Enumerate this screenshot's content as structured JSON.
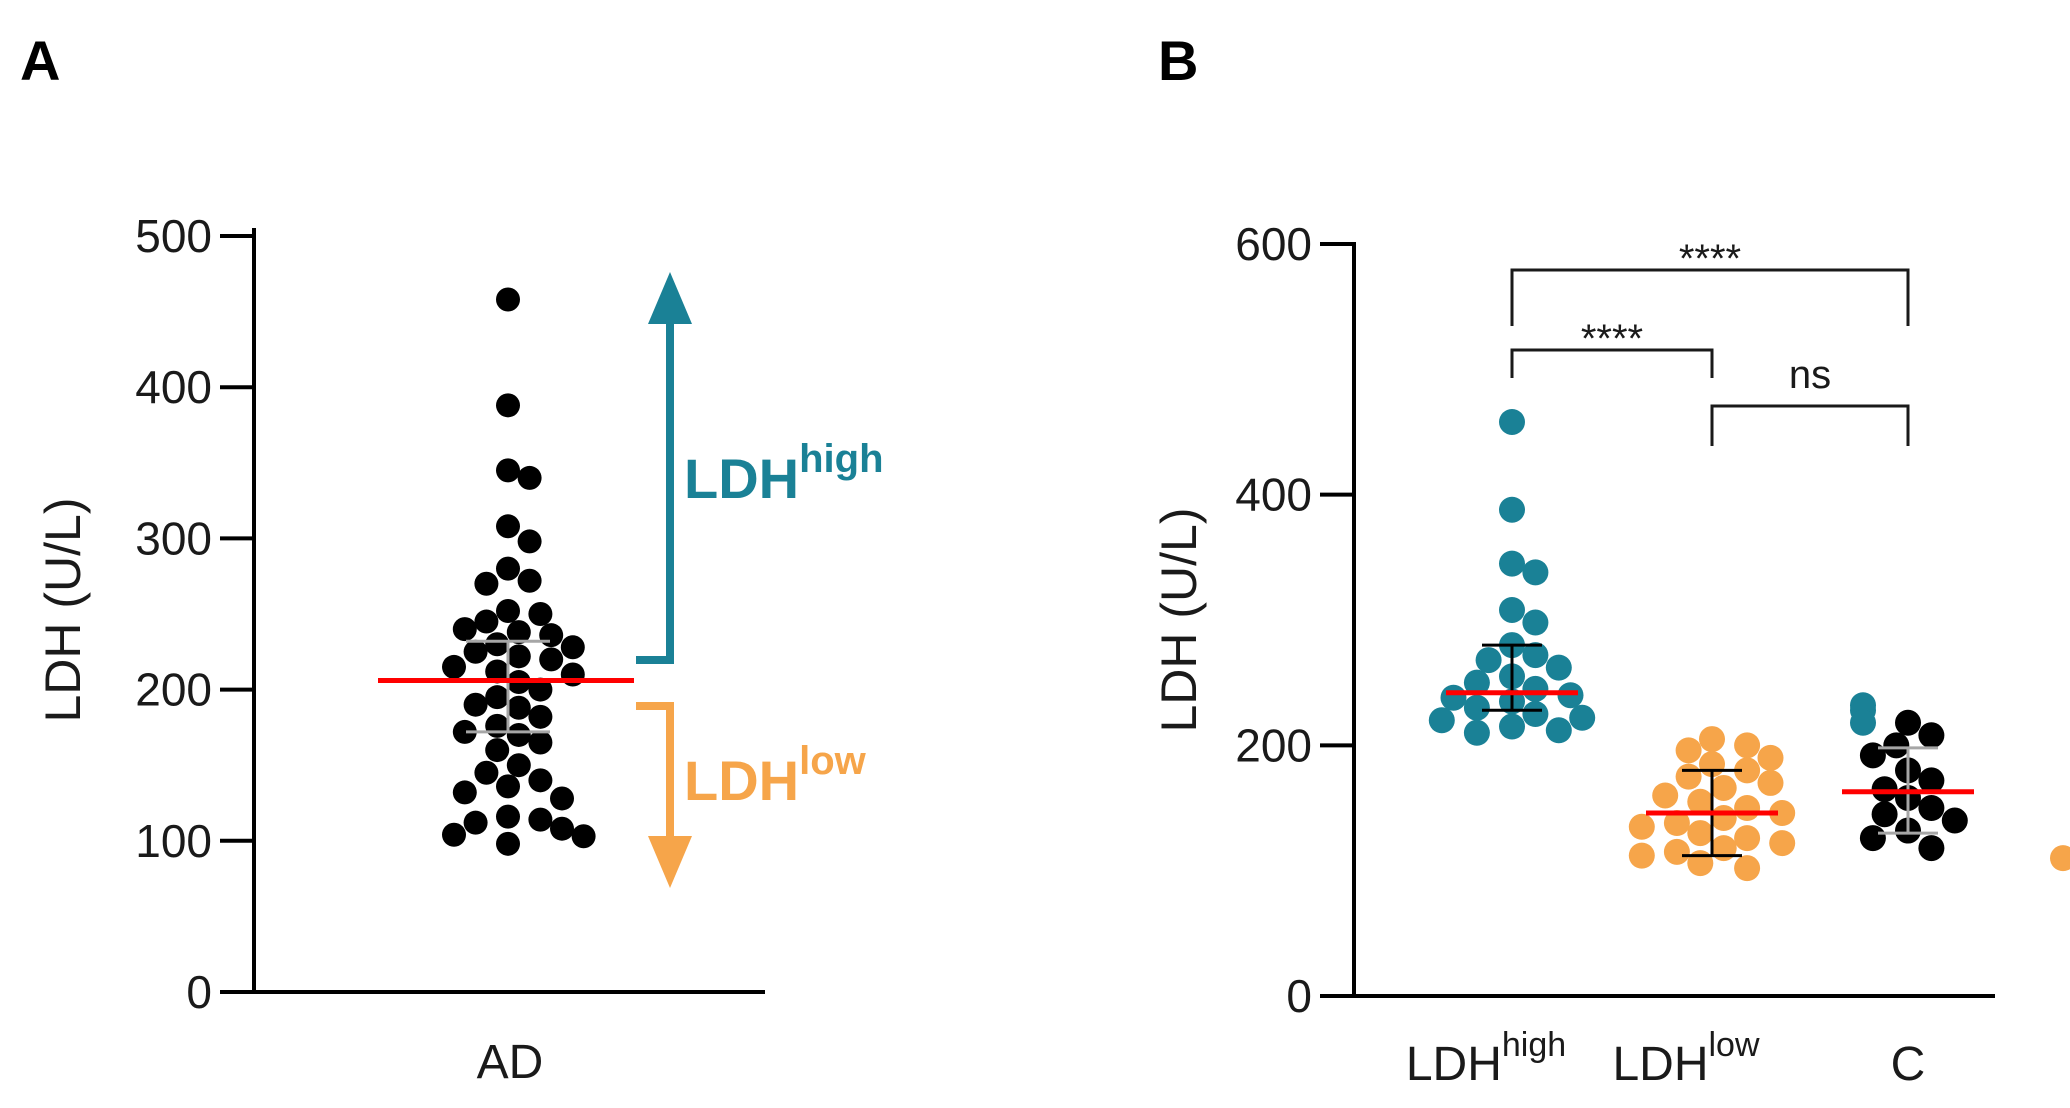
{
  "colors": {
    "teal": "#1a8196",
    "orange": "#f6a54a",
    "black": "#000000",
    "red": "#ff0000",
    "grey": "#a6a6a6"
  },
  "chart_data": [
    {
      "panel": "A",
      "type": "scatter",
      "title": "",
      "ylabel": "LDH (U/L)",
      "ylim": [
        0,
        500
      ],
      "yticks": [
        "0",
        "100",
        "200",
        "300",
        "400",
        "500"
      ],
      "category": "AD",
      "mean": 206,
      "error_range": [
        172,
        232
      ],
      "points": [
        458,
        388,
        345,
        340,
        308,
        298,
        280,
        272,
        270,
        252,
        250,
        245,
        240,
        238,
        236,
        230,
        228,
        225,
        222,
        220,
        215,
        212,
        210,
        205,
        200,
        195,
        190,
        188,
        182,
        176,
        172,
        170,
        165,
        160,
        150,
        145,
        140,
        136,
        132,
        128,
        116,
        114,
        112,
        108,
        104,
        103,
        98
      ],
      "annotations": {
        "high": {
          "base": "LDH",
          "sup": "high"
        },
        "low": {
          "base": "LDH",
          "sup": "low"
        }
      }
    },
    {
      "panel": "B",
      "type": "scatter",
      "title": "",
      "ylabel": "LDH (U/L)",
      "ylim": [
        0,
        600
      ],
      "yticks": [
        "0",
        "200",
        "400",
        "600"
      ],
      "groups": [
        {
          "name": "LDHhigh",
          "label_base": "LDH",
          "label_sup": "high",
          "color": "#1a8196",
          "mean": 242,
          "error_range": [
            228,
            280
          ],
          "points": [
            458,
            388,
            345,
            338,
            308,
            298,
            280,
            272,
            268,
            262,
            255,
            250,
            245,
            240,
            238,
            235,
            232,
            230,
            228,
            225,
            222,
            220,
            218,
            215,
            212,
            210
          ]
        },
        {
          "name": "LDHlow",
          "label_base": "LDH",
          "label_sup": "low",
          "color": "#f6a54a",
          "mean": 146,
          "error_range": [
            112,
            180
          ],
          "points": [
            205,
            200,
            196,
            190,
            185,
            180,
            175,
            170,
            166,
            160,
            155,
            150,
            146,
            142,
            138,
            135,
            130,
            126,
            122,
            118,
            115,
            112,
            110,
            106,
            102
          ]
        },
        {
          "name": "C",
          "label_base": "C",
          "label_sup": "",
          "color": "#000000",
          "mean": 163,
          "error_range": [
            130,
            198
          ],
          "points": [
            218,
            208,
            200,
            192,
            180,
            172,
            165,
            158,
            150,
            145,
            140,
            132,
            126,
            118
          ]
        }
      ],
      "comparisons": [
        {
          "from": 0,
          "to": 2,
          "label": "****"
        },
        {
          "from": 0,
          "to": 1,
          "label": "****"
        },
        {
          "from": 1,
          "to": 2,
          "label": "ns"
        }
      ]
    }
  ]
}
